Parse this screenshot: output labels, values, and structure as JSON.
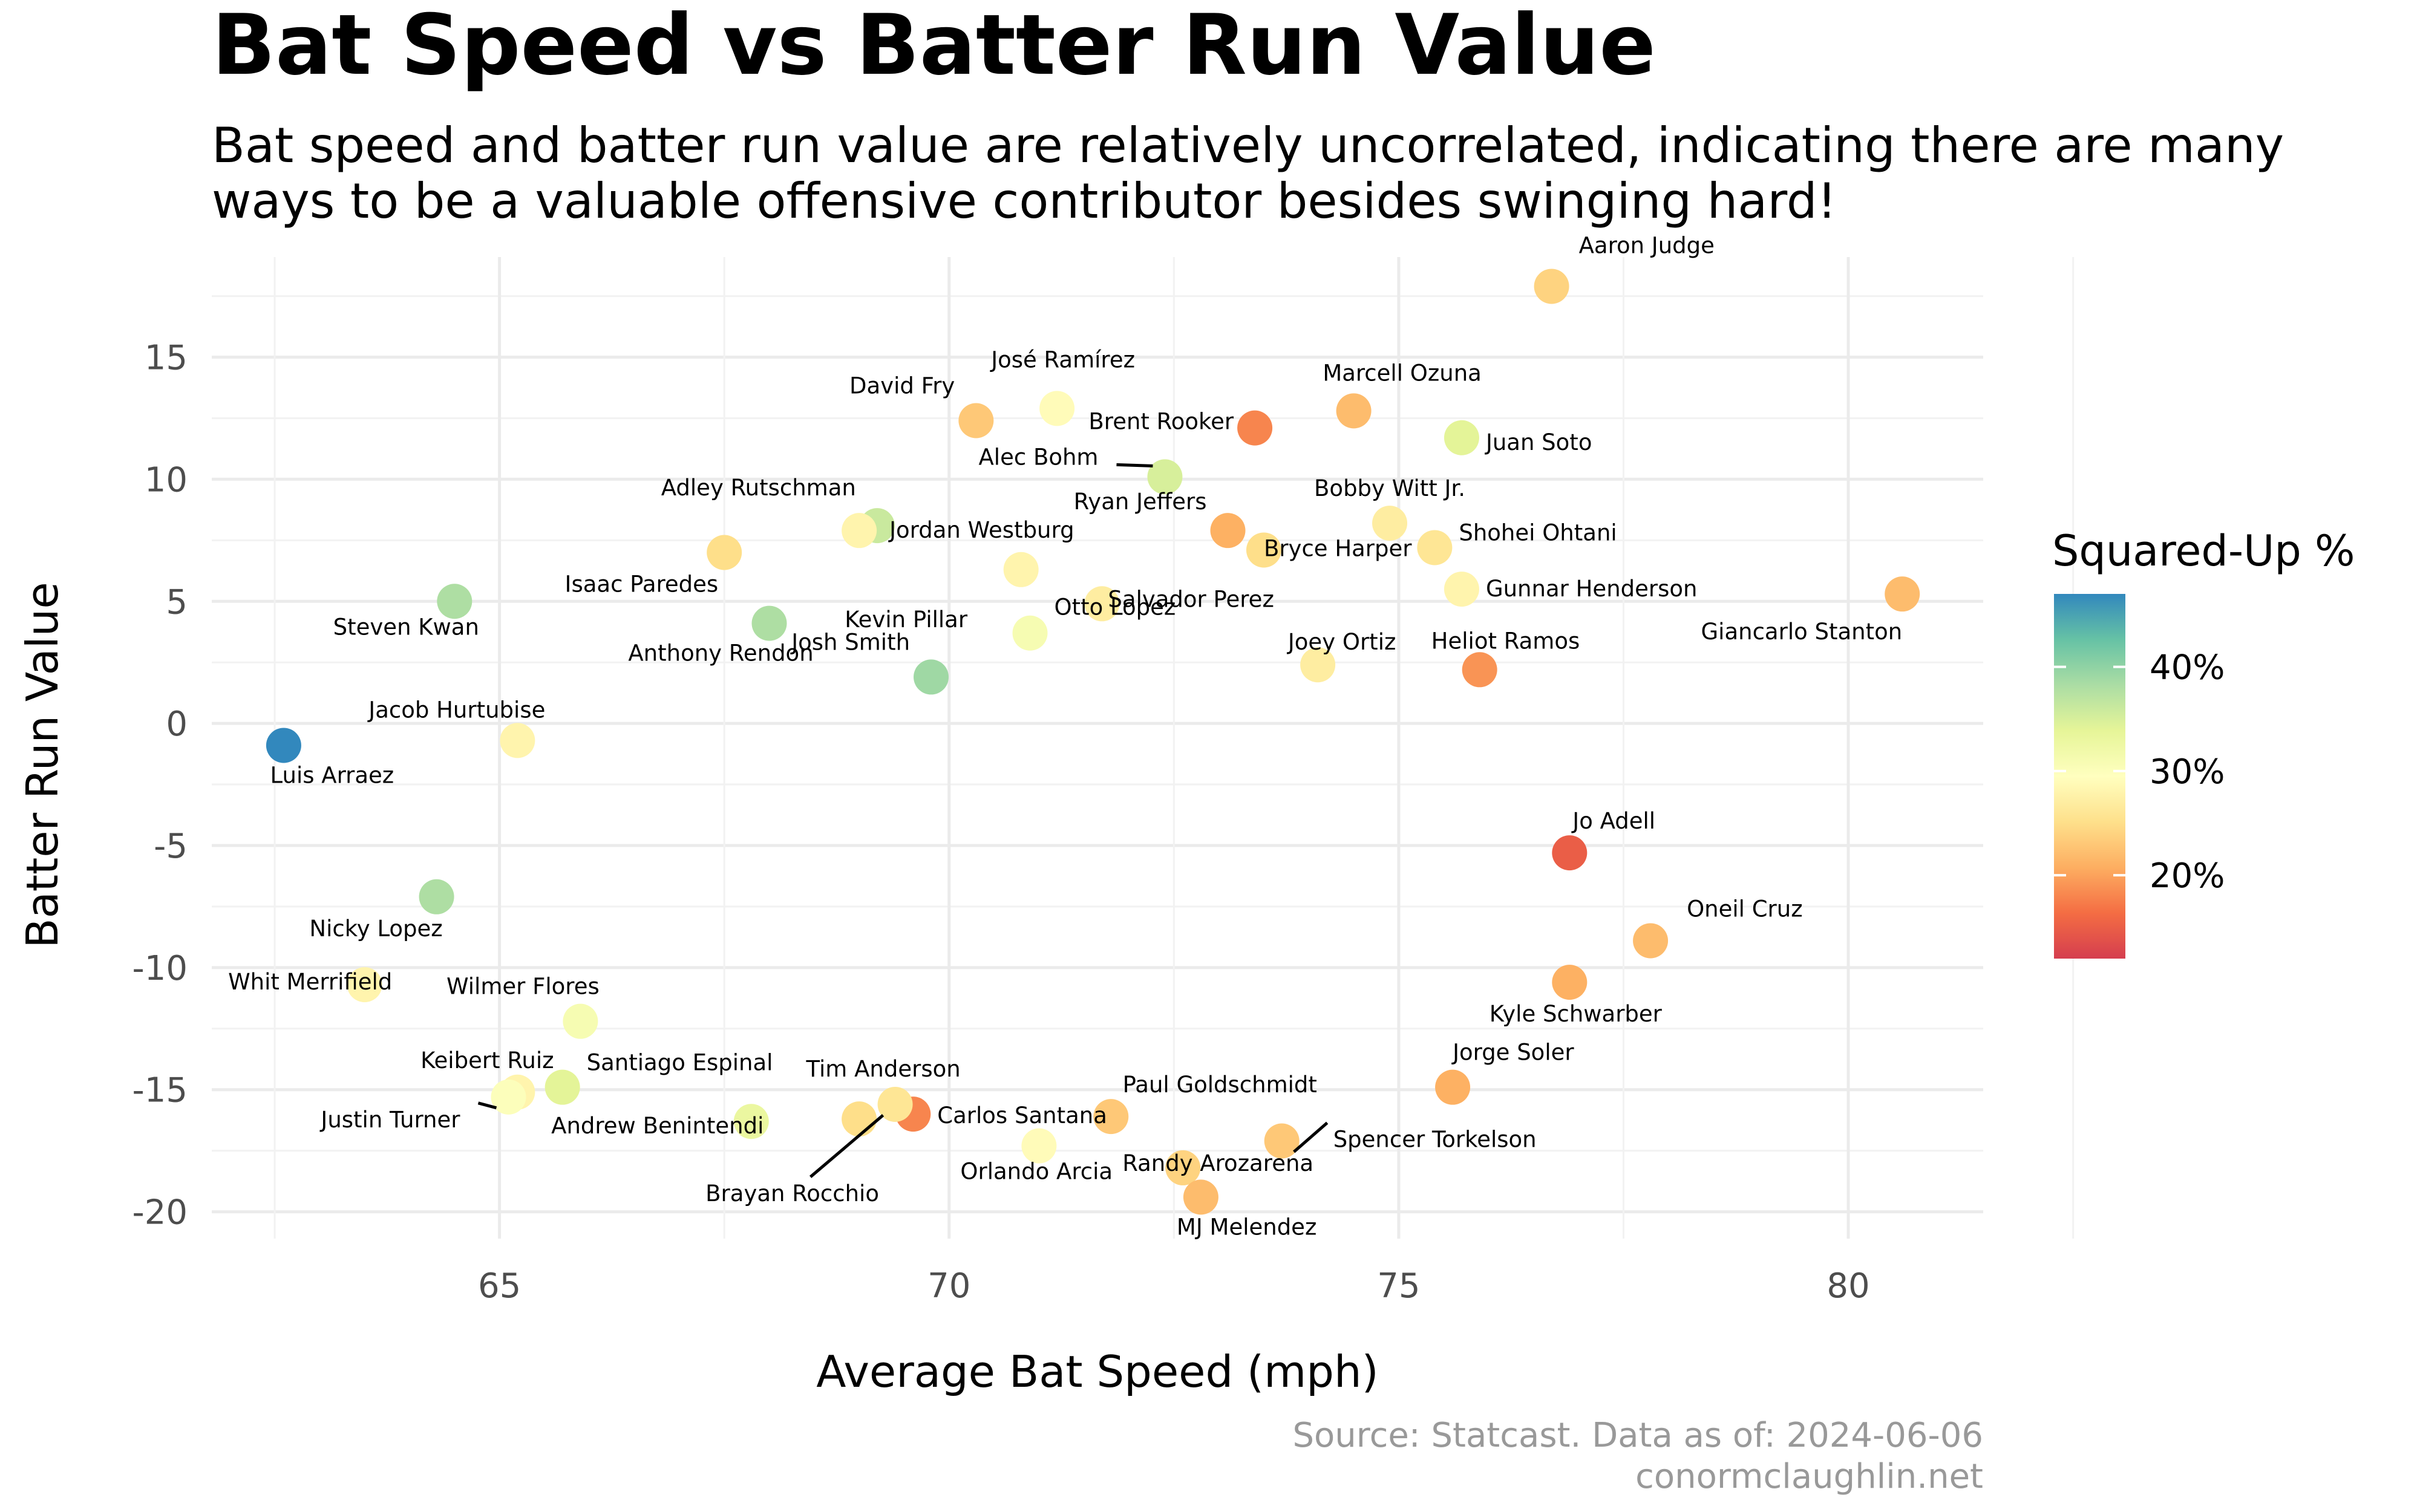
{
  "chart_data": {
    "type": "scatter",
    "title": "Bat Speed vs Batter Run Value",
    "subtitle_lines": [
      "Bat speed and batter run value are relatively uncorrelated, indicating there are many",
      "ways to be a valuable offensive contributor besides swinging hard!"
    ],
    "xlabel": "Average Bat Speed (mph)",
    "ylabel": "Batter Run Value",
    "xlim": [
      61.8,
      81.5
    ],
    "ylim": [
      -21.1,
      19.1
    ],
    "x_ticks": [
      65,
      70,
      75,
      80
    ],
    "y_ticks": [
      -20,
      -15,
      -10,
      -5,
      0,
      5,
      10,
      15
    ],
    "y_tick_labels": [
      "-20",
      "-15",
      "-10",
      "-5",
      "0",
      "5",
      "10",
      "15"
    ],
    "grid": true,
    "legend": {
      "title": "Squared-Up %",
      "position": "right",
      "ticks": [
        {
          "label": "40%",
          "value": 40
        },
        {
          "label": "30%",
          "value": 30
        },
        {
          "label": "20%",
          "value": 20
        }
      ],
      "min": 12,
      "max": 47
    },
    "color_scale": [
      "#d53e4f",
      "#f46d43",
      "#fdae61",
      "#fee08b",
      "#ffffbf",
      "#e6f598",
      "#abdda4",
      "#66c2a5",
      "#3288bd"
    ],
    "caption_lines": [
      "Source: Statcast. Data as of: 2024-06-06",
      "conormclaughlin.net"
    ],
    "labeled_points": [
      {
        "name": "Aaron Judge",
        "x": 76.7,
        "y": 17.9,
        "squared_up": 24
      },
      {
        "name": "José Ramírez",
        "x": 71.2,
        "y": 12.9,
        "squared_up": 29
      },
      {
        "name": "David Fry",
        "x": 70.3,
        "y": 12.4,
        "squared_up": 23
      },
      {
        "name": "Marcell Ozuna",
        "x": 74.5,
        "y": 12.8,
        "squared_up": 22
      },
      {
        "name": "Brent Rooker",
        "x": 73.4,
        "y": 12.1,
        "squared_up": 18
      },
      {
        "name": "Juan Soto",
        "x": 75.7,
        "y": 11.7,
        "squared_up": 34
      },
      {
        "name": "Alec Bohm",
        "x": 72.4,
        "y": 10.1,
        "squared_up": 35
      },
      {
        "name": "Adley Rutschman",
        "x": 69.2,
        "y": 8.1,
        "squared_up": 36
      },
      {
        "name": "Ryan Jeffers",
        "x": 73.1,
        "y": 7.9,
        "squared_up": 21
      },
      {
        "name": "Bobby Witt Jr.",
        "x": 74.9,
        "y": 8.2,
        "squared_up": 27
      },
      {
        "name": "Jordan Westburg",
        "x": 69.0,
        "y": 7.9,
        "squared_up": 28
      },
      {
        "name": "Isaac Paredes",
        "x": 67.5,
        "y": 7.0,
        "squared_up": 25
      },
      {
        "name": "Bryce Harper",
        "x": 73.5,
        "y": 7.1,
        "squared_up": 25
      },
      {
        "name": "Shohei Ohtani",
        "x": 75.4,
        "y": 7.2,
        "squared_up": 26
      },
      {
        "name": "Kevin Pillar",
        "x": 70.8,
        "y": 6.3,
        "squared_up": 28
      },
      {
        "name": "Gunnar Henderson",
        "x": 75.7,
        "y": 5.5,
        "squared_up": 28
      },
      {
        "name": "Giancarlo Stanton",
        "x": 80.6,
        "y": 5.3,
        "squared_up": 22
      },
      {
        "name": "Steven Kwan",
        "x": 64.5,
        "y": 5.0,
        "squared_up": 38
      },
      {
        "name": "Salvador Perez",
        "x": 71.7,
        "y": 4.9,
        "squared_up": 27
      },
      {
        "name": "Anthony Rendon",
        "x": 68.0,
        "y": 4.1,
        "squared_up": 38
      },
      {
        "name": "Otto Lopez",
        "x": 70.9,
        "y": 3.7,
        "squared_up": 31
      },
      {
        "name": "Josh Smith",
        "x": 69.8,
        "y": 1.9,
        "squared_up": 39
      },
      {
        "name": "Joey Ortiz",
        "x": 74.1,
        "y": 2.4,
        "squared_up": 27
      },
      {
        "name": "Heliot Ramos",
        "x": 75.9,
        "y": 2.2,
        "squared_up": 19
      },
      {
        "name": "Jacob Hurtubise",
        "x": 65.2,
        "y": -0.7,
        "squared_up": 28
      },
      {
        "name": "Luis Arraez",
        "x": 62.6,
        "y": -0.9,
        "squared_up": 47
      },
      {
        "name": "Jo Adell",
        "x": 76.9,
        "y": -5.3,
        "squared_up": 15
      },
      {
        "name": "Nicky Lopez",
        "x": 64.3,
        "y": -7.1,
        "squared_up": 38
      },
      {
        "name": "Oneil Cruz",
        "x": 77.8,
        "y": -8.9,
        "squared_up": 22
      },
      {
        "name": "Whit Merrifield",
        "x": 63.5,
        "y": -10.7,
        "squared_up": 28
      },
      {
        "name": "Kyle Schwarber",
        "x": 76.9,
        "y": -10.6,
        "squared_up": 21
      },
      {
        "name": "Wilmer Flores",
        "x": 65.9,
        "y": -12.2,
        "squared_up": 31
      },
      {
        "name": "Jorge Soler",
        "x": 75.6,
        "y": -14.9,
        "squared_up": 21
      },
      {
        "name": "Keibert Ruiz",
        "x": 65.2,
        "y": -15.1,
        "squared_up": 28
      },
      {
        "name": "Santiago Espinal",
        "x": 65.7,
        "y": -14.9,
        "squared_up": 34
      },
      {
        "name": "Justin Turner",
        "x": 65.1,
        "y": -15.3,
        "squared_up": 30
      },
      {
        "name": "Andrew Benintendi",
        "x": 67.8,
        "y": -16.3,
        "squared_up": 33
      },
      {
        "name": "Tim Anderson",
        "x": 69.0,
        "y": -16.2,
        "squared_up": 25
      },
      {
        "name": "Carlos Santana",
        "x": 69.6,
        "y": -16.0,
        "squared_up": 18
      },
      {
        "name": "Brayan Rocchio",
        "x": 69.4,
        "y": -15.6,
        "squared_up": 26
      },
      {
        "name": "Paul Goldschmidt",
        "x": 71.8,
        "y": -16.1,
        "squared_up": 23
      },
      {
        "name": "Randy Arozarena",
        "x": 72.6,
        "y": -18.2,
        "squared_up": 24
      },
      {
        "name": "Spencer Torkelson",
        "x": 73.7,
        "y": -17.1,
        "squared_up": 23
      },
      {
        "name": "Orlando Arcia",
        "x": 71.0,
        "y": -17.3,
        "squared_up": 29
      },
      {
        "name": "MJ Melendez",
        "x": 72.8,
        "y": -19.4,
        "squared_up": 22
      }
    ]
  }
}
